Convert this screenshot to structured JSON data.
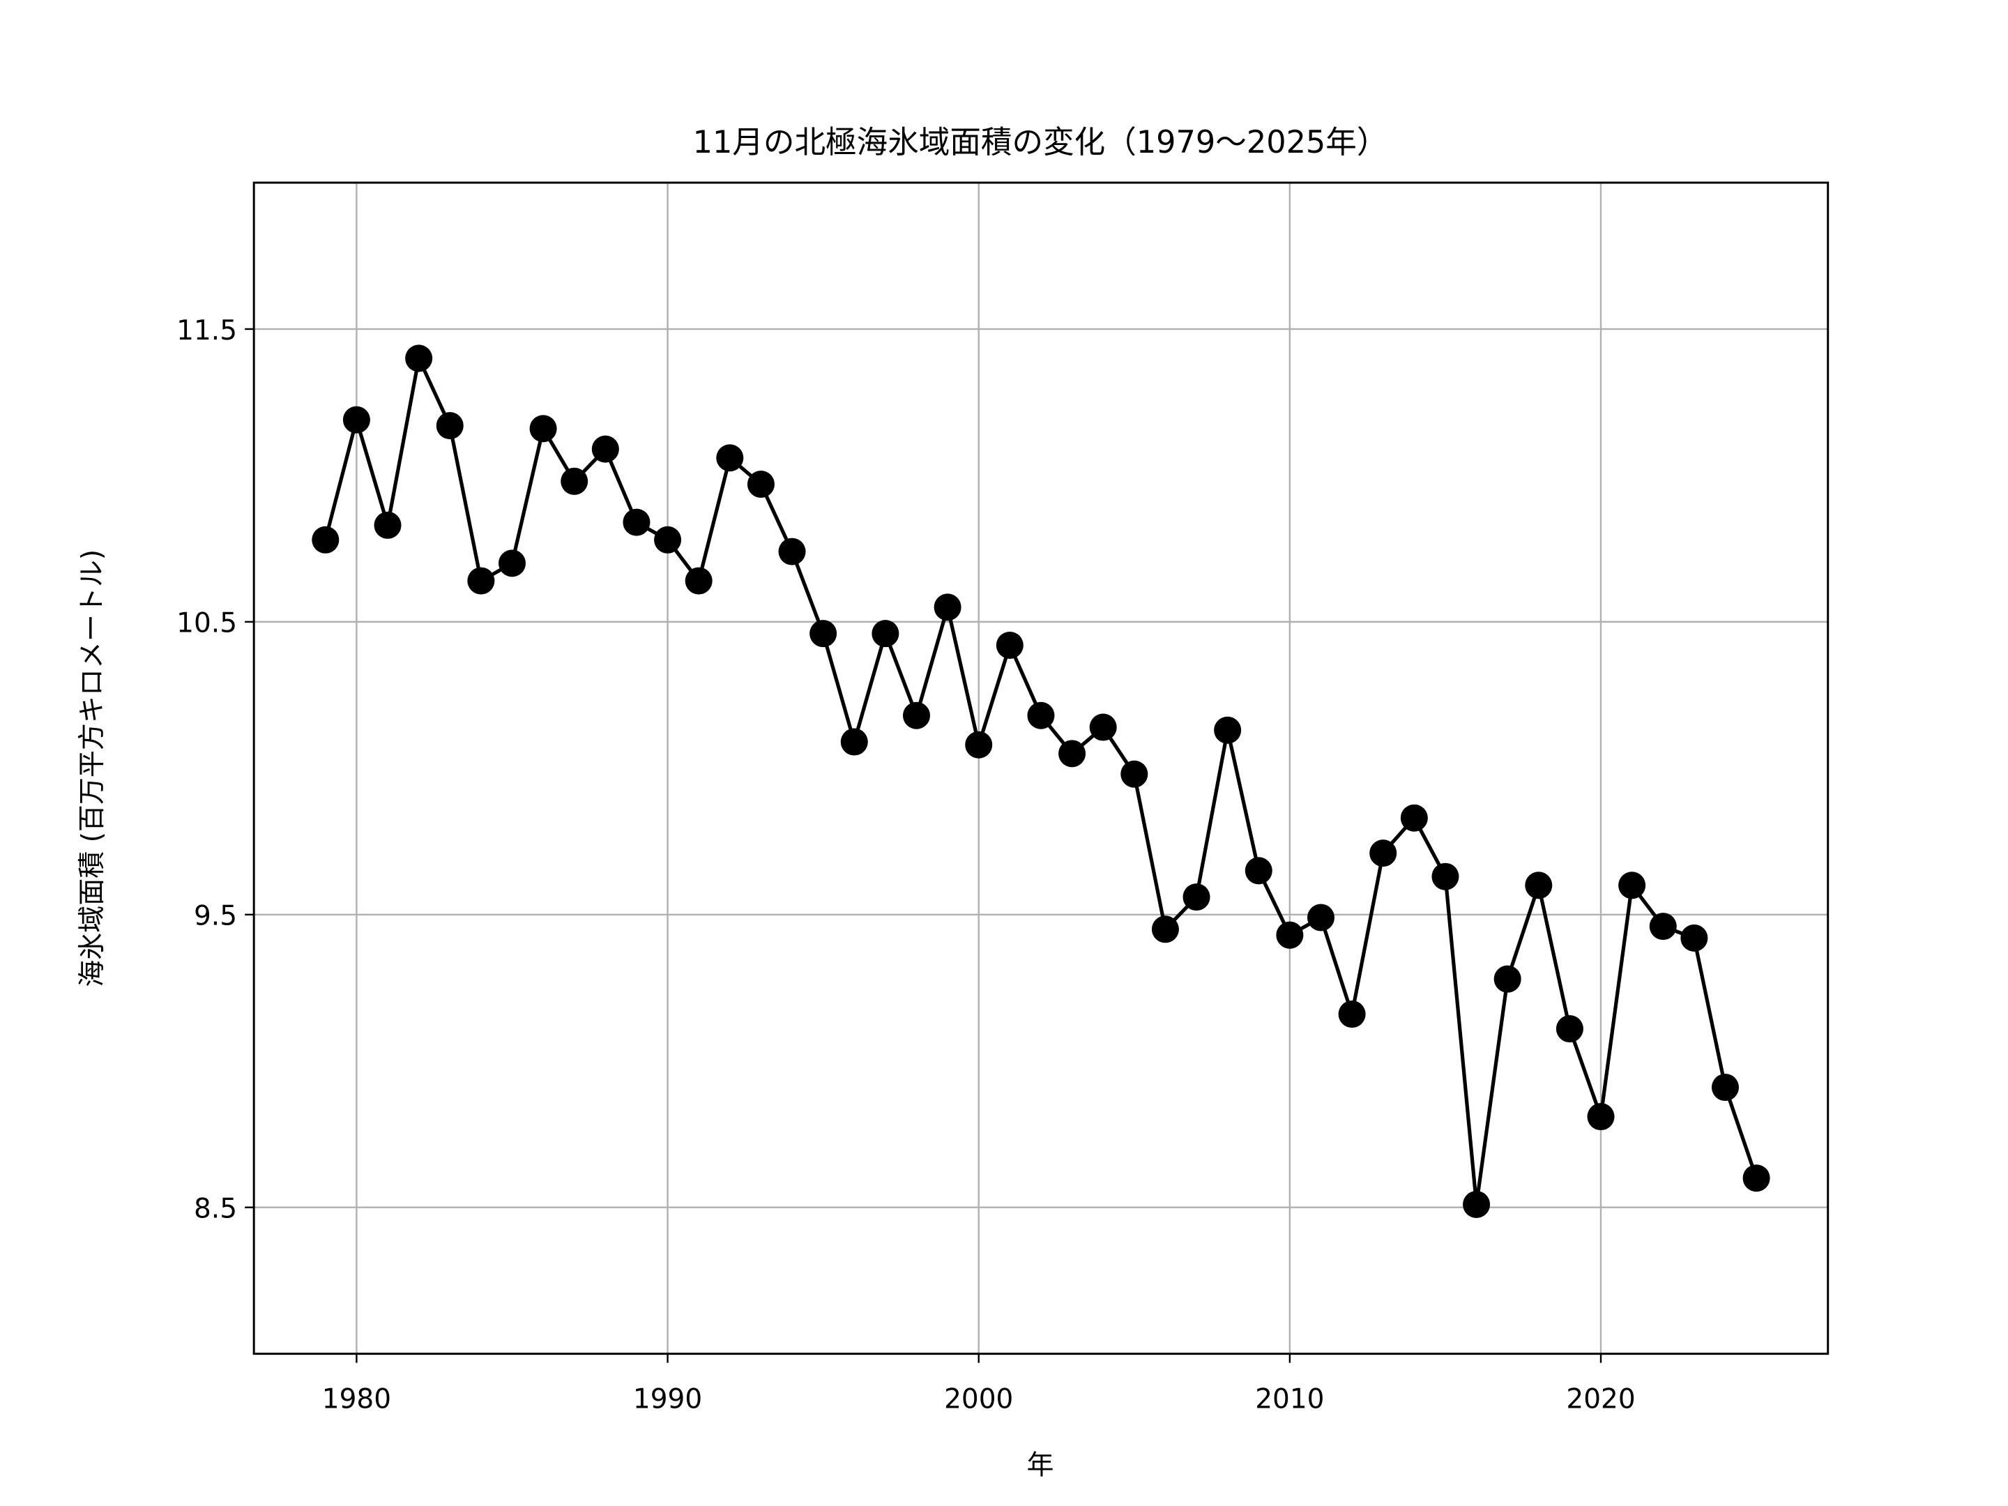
{
  "chart_data": {
    "type": "line",
    "title": "11月の北極海氷域面積の変化（1979〜2025年）",
    "xlabel": "年",
    "ylabel": "海氷域面積 (百万平方キロメートル)",
    "xlim": [
      1976.7,
      2027.3
    ],
    "ylim": [
      8.0,
      12.0
    ],
    "xticks": [
      1980,
      1990,
      2000,
      2010,
      2020
    ],
    "yticks": [
      8.5,
      9.5,
      10.5,
      11.5
    ],
    "ytick_labels": [
      "8.5",
      "9.5",
      "10.5",
      "11.5"
    ],
    "grid": true,
    "marker": "circle",
    "color": "#000000",
    "grid_color": "#b0b0b0",
    "x": [
      1979,
      1980,
      1981,
      1982,
      1983,
      1984,
      1985,
      1986,
      1987,
      1988,
      1989,
      1990,
      1991,
      1992,
      1993,
      1994,
      1995,
      1996,
      1997,
      1998,
      1999,
      2000,
      2001,
      2002,
      2003,
      2004,
      2005,
      2006,
      2007,
      2008,
      2009,
      2010,
      2011,
      2012,
      2013,
      2014,
      2015,
      2016,
      2017,
      2018,
      2019,
      2020,
      2021,
      2022,
      2023,
      2024,
      2025
    ],
    "y": [
      10.78,
      11.19,
      10.83,
      11.4,
      11.17,
      10.64,
      10.7,
      11.16,
      10.98,
      11.09,
      10.84,
      10.78,
      10.64,
      11.06,
      10.97,
      10.74,
      10.46,
      10.09,
      10.46,
      10.18,
      10.55,
      10.08,
      10.42,
      10.18,
      10.05,
      10.14,
      9.98,
      9.45,
      9.56,
      10.13,
      9.65,
      9.43,
      9.49,
      9.16,
      9.71,
      9.83,
      9.63,
      8.51,
      9.28,
      9.6,
      9.11,
      8.81,
      9.6,
      9.46,
      9.42,
      8.91,
      8.6
    ]
  }
}
